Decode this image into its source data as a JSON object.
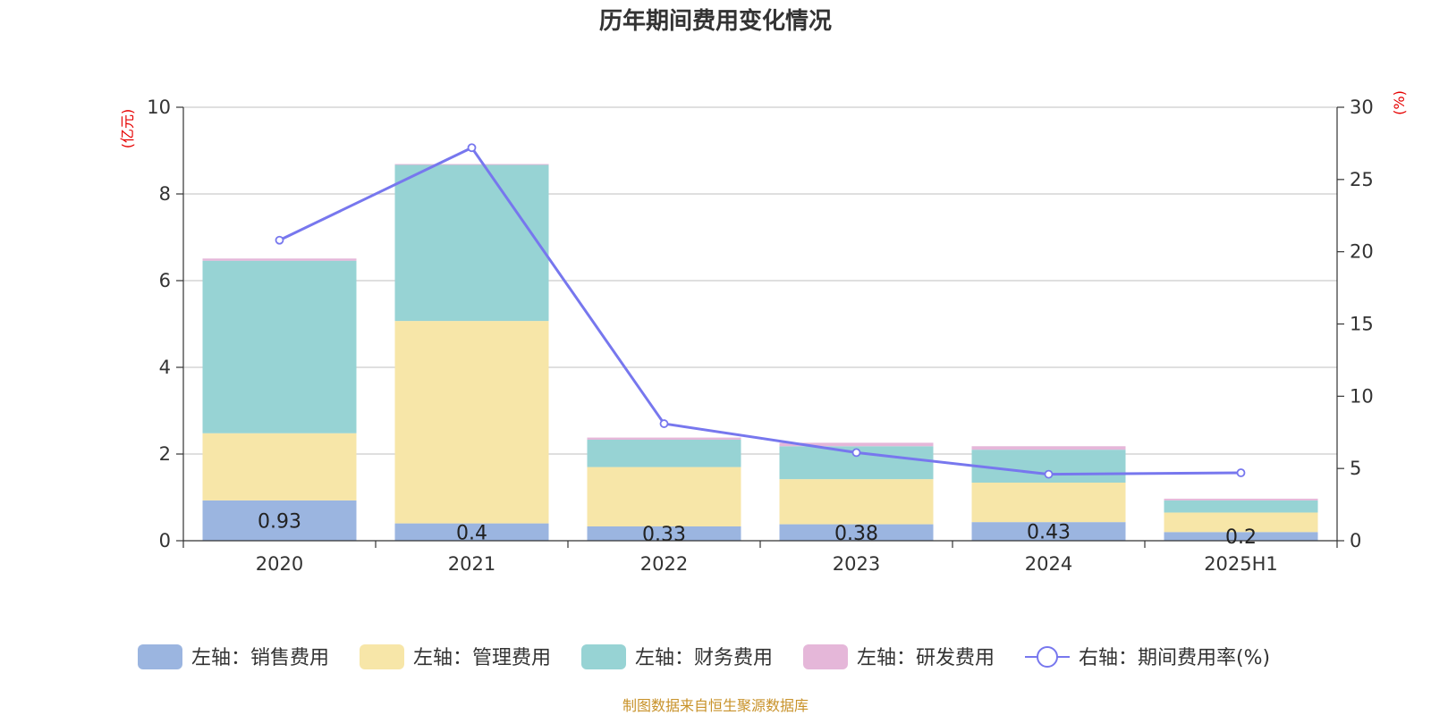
{
  "chart_data": {
    "type": "bar",
    "title": "历年期间费用变化情况",
    "categories": [
      "2020",
      "2021",
      "2022",
      "2023",
      "2024",
      "2025H1"
    ],
    "left_axis": {
      "unit_label": "(亿元)",
      "ylim": [
        0,
        10
      ],
      "ticks": [
        "0",
        "2",
        "4",
        "6",
        "8",
        "10"
      ]
    },
    "right_axis": {
      "unit_label": "(%)",
      "ylim": [
        0,
        30
      ],
      "ticks": [
        "0",
        "5",
        "10",
        "15",
        "20",
        "25",
        "30"
      ]
    },
    "series": [
      {
        "name": "左轴：销售费用",
        "type": "bar",
        "stack": true,
        "axis": "left",
        "color": "#9bb5e0",
        "values": [
          0.93,
          0.4,
          0.33,
          0.38,
          0.43,
          0.2
        ],
        "labels": [
          "0.93",
          "0.4",
          "0.33",
          "0.38",
          "0.43",
          "0.2"
        ]
      },
      {
        "name": "左轴：管理费用",
        "type": "bar",
        "stack": true,
        "axis": "left",
        "color": "#f7e6a8",
        "values": [
          1.55,
          4.67,
          1.37,
          1.04,
          0.91,
          0.45
        ]
      },
      {
        "name": "左轴：财务费用",
        "type": "bar",
        "stack": true,
        "axis": "left",
        "color": "#97d3d4",
        "values": [
          3.98,
          3.6,
          0.63,
          0.76,
          0.76,
          0.28
        ]
      },
      {
        "name": "左轴：研发费用",
        "type": "bar",
        "stack": true,
        "axis": "left",
        "color": "#e5b7d9",
        "values": [
          0.05,
          0.02,
          0.05,
          0.08,
          0.08,
          0.04
        ]
      },
      {
        "name": "右轴：期间费用率(%)",
        "type": "line",
        "axis": "right",
        "color": "#7777ee",
        "values": [
          20.8,
          27.2,
          8.1,
          6.1,
          4.6,
          4.7
        ]
      }
    ],
    "grid": true,
    "legend_position": "bottom",
    "source": "制图数据来自恒生聚源数据库"
  }
}
